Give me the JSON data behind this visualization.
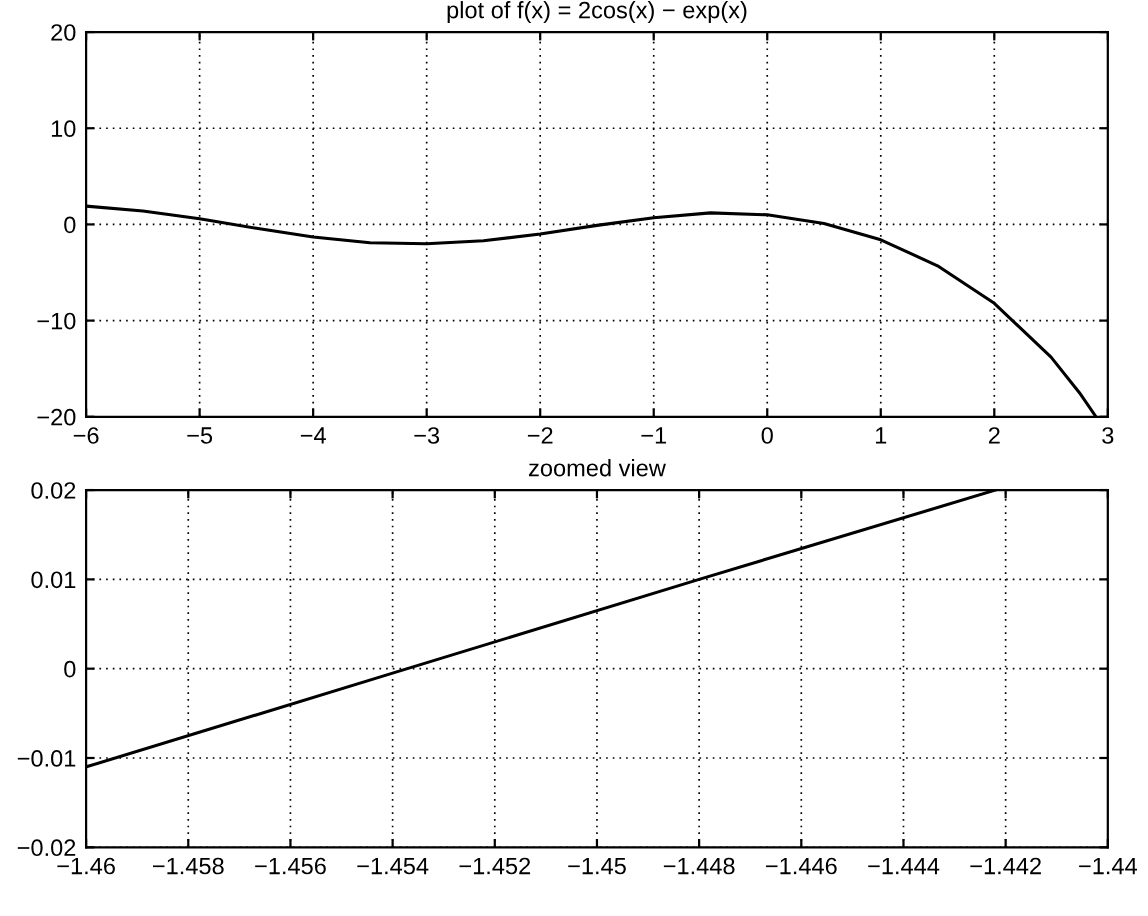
{
  "chart_data": [
    {
      "type": "line",
      "title": "plot of f(x) = 2cos(x) − exp(x)",
      "x": [
        -6,
        -5.5,
        -5,
        -4.5,
        -4,
        -3.5,
        -3,
        -2.5,
        -2,
        -1.5,
        -1,
        -0.5,
        0,
        0.5,
        1,
        1.5,
        2,
        2.5,
        2.75,
        2.89
      ],
      "series": [
        {
          "color": "#000000",
          "values": [
            1.9,
            1.4,
            0.6,
            -0.4,
            -1.3,
            -1.9,
            -2.0,
            -1.7,
            -1.0,
            -0.1,
            0.7,
            1.2,
            1.0,
            0.1,
            -1.6,
            -4.3,
            -8.2,
            -13.8,
            -17.5,
            -19.9
          ]
        }
      ],
      "xlim": [
        -6,
        3
      ],
      "xticks": [
        -6,
        -5,
        -4,
        -3,
        -2,
        -1,
        0,
        1,
        2,
        3
      ],
      "ylim": [
        -20,
        20
      ],
      "yticks": [
        -20,
        -10,
        0,
        10,
        20
      ],
      "grid": true,
      "line_style": "solid"
    },
    {
      "type": "line",
      "title": "zoomed view",
      "x": [
        -1.46,
        -1.454,
        -1.448,
        -1.4422
      ],
      "series": [
        {
          "color": "#000000",
          "values": [
            -0.011,
            -0.0005,
            0.01,
            0.02
          ]
        }
      ],
      "xlim": [
        -1.46,
        -1.44
      ],
      "xticks": [
        -1.46,
        -1.458,
        -1.456,
        -1.454,
        -1.452,
        -1.45,
        -1.448,
        -1.446,
        -1.444,
        -1.442,
        -1.44
      ],
      "ylim": [
        -0.02,
        0.02
      ],
      "yticks": [
        -0.02,
        -0.01,
        0,
        0.01,
        0.02
      ],
      "grid": true,
      "line_style": "solid"
    }
  ]
}
